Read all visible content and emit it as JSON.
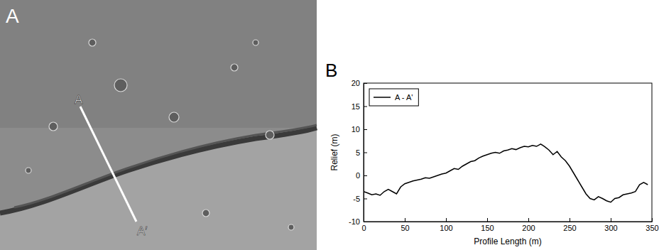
{
  "image": {
    "panel_label": "A",
    "line_start_label": "A",
    "line_end_label": "A′"
  },
  "chart_data": {
    "panel_label": "B",
    "type": "line",
    "x_label": "Profile Length (m)",
    "y_label": "Relief (m)",
    "x": [
      0,
      5,
      10,
      15,
      20,
      25,
      30,
      35,
      40,
      45,
      50,
      55,
      60,
      65,
      70,
      75,
      80,
      85,
      90,
      95,
      100,
      105,
      110,
      115,
      120,
      125,
      130,
      135,
      140,
      145,
      150,
      155,
      160,
      165,
      170,
      175,
      180,
      185,
      190,
      195,
      200,
      205,
      210,
      215,
      220,
      225,
      230,
      235,
      240,
      245,
      250,
      255,
      260,
      265,
      270,
      275,
      280,
      285,
      290,
      295,
      300,
      305,
      310,
      315,
      320,
      325,
      330,
      335,
      340,
      345
    ],
    "series": [
      {
        "name": "A - A'",
        "color": "#000000",
        "values": [
          -3.5,
          -3.8,
          -4.2,
          -4.0,
          -4.3,
          -3.5,
          -3.0,
          -3.5,
          -4.0,
          -2.5,
          -1.8,
          -1.5,
          -1.2,
          -1.0,
          -0.8,
          -0.5,
          -0.6,
          -0.3,
          0.0,
          0.3,
          0.5,
          1.0,
          1.5,
          1.3,
          2.0,
          2.5,
          3.0,
          3.2,
          3.8,
          4.2,
          4.5,
          4.8,
          5.0,
          4.8,
          5.3,
          5.5,
          5.8,
          5.6,
          6.0,
          6.3,
          6.2,
          6.5,
          6.3,
          6.8,
          6.2,
          5.5,
          4.5,
          5.2,
          4.0,
          3.2,
          2.0,
          0.5,
          -1.0,
          -2.5,
          -4.0,
          -5.0,
          -5.3,
          -4.6,
          -5.0,
          -5.5,
          -5.8,
          -5.0,
          -4.8,
          -4.2,
          -4.0,
          -3.8,
          -3.5,
          -2.0,
          -1.5,
          -2.0
        ]
      }
    ],
    "xlim": [
      0,
      350
    ],
    "xticks": [
      0,
      50,
      100,
      150,
      200,
      250,
      300,
      350
    ],
    "ylim": [
      -10,
      20
    ],
    "yticks": [
      -10,
      -5,
      0,
      5,
      10,
      15,
      20
    ],
    "legend": "upper left",
    "grid": false
  }
}
